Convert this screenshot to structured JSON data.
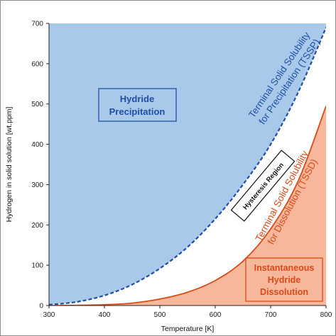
{
  "chart_data": {
    "type": "area",
    "title": "",
    "xlabel": "Temperature [K]",
    "ylabel": "Hydrogen in solid solution [wt.ppm]",
    "xlim": [
      300,
      800
    ],
    "ylim": [
      0,
      700
    ],
    "x_ticks": [
      300,
      400,
      500,
      600,
      700,
      800
    ],
    "y_ticks": [
      0,
      100,
      200,
      300,
      400,
      500,
      600,
      700
    ],
    "grid": false,
    "series": [
      {
        "name": "Terminal Solid Solubility for Precipitation (TSSP)",
        "color": "#1f4fa3",
        "line_style": "dashed",
        "fill_color": "#a9c9ea",
        "x": [
          300,
          350,
          400,
          450,
          500,
          550,
          600,
          650,
          700,
          750,
          800
        ],
        "y": [
          2,
          9,
          25,
          52,
          92,
          145,
          215,
          300,
          400,
          530,
          690
        ]
      },
      {
        "name": "Terminal Solid Solubility for Dissolution (TSSD)",
        "color": "#d94a1a",
        "line_style": "solid",
        "fill_color": "#f7b79a",
        "x": [
          300,
          350,
          400,
          450,
          500,
          550,
          600,
          650,
          700,
          750,
          800
        ],
        "y": [
          0,
          0.5,
          2,
          6,
          16,
          33,
          62,
          110,
          190,
          310,
          495
        ]
      }
    ],
    "annotations": {
      "precip_curve_label_line1": "Terminal Solid Solubility",
      "precip_curve_label_line2": "for Precipitation (TSSP)",
      "dissol_curve_label_line1": "Terminal Solid Solubility",
      "dissol_curve_label_line2": "for Dissolution (TSSD)",
      "hydride_precip_line1": "Hydride",
      "hydride_precip_line2": "Precipitation",
      "hysteresis": "Hysteresis Region",
      "instant_line1": "Instantaneous",
      "instant_line2": "Hydride",
      "instant_line3": "Dissolution"
    }
  }
}
